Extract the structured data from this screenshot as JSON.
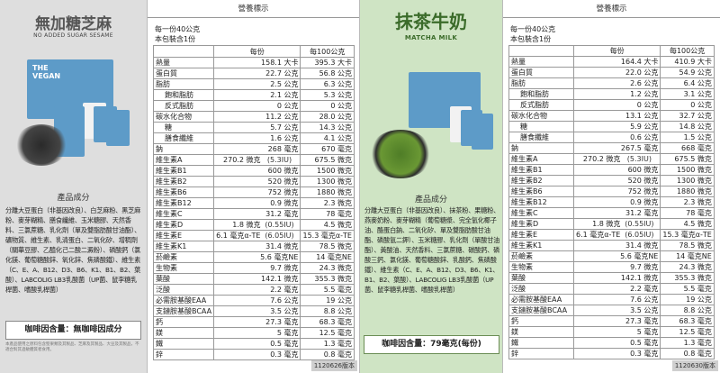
{
  "left_product": {
    "name": "無加糖芝麻",
    "subtitle": "NO ADDED SUGAR SESAME",
    "box_label": "THE\nVEGAN",
    "section_label": "產品成分",
    "ingredients": "分離大豆蛋白（非基因改良）、白芝麻粉、黑芝麻粉、麥芽糊精、膳食纖維、玉米糖膠、天然香料、三氯蔗糖、乳化劑（單及雙脂肪酸甘油酯）、礦物質、維生素、乳清蛋白、二氧化矽、增稠劑（關華豆膠、乙醯化己二酸二澱粉）、磷酸鈣（氯化鎂、葡萄糖酸鋅、氧化鋅、焦磷酸鐵）、維生素（C、E、A、B12、D3、B6、K1、B1、B2、葉酸）、LABCOLIG LB3乳酸菌（UP菌、鼠李糖乳桿菌、嗜酸乳桿菌）",
    "caffeine": "咖啡因含量：無咖啡因成分",
    "fineprint": "本產品使用之原料包含堅果類及其製品、芝麻及其製品、大豆及其製品，不適合對其過敏體質者食用。",
    "code": "1120626版本"
  },
  "left_nutrition": {
    "header": "營養標示",
    "serving": "每一份40公克",
    "servings_per_pack": "本包裝含1份",
    "col_per_serving": "每份",
    "col_per_100g": "每100公克",
    "rows": [
      {
        "name": "熱量",
        "a": "158.1 大卡",
        "m": "",
        "b": "395.3 大卡",
        "i": 0
      },
      {
        "name": "蛋白質",
        "a": "22.7 公克",
        "m": "",
        "b": "56.8 公克",
        "i": 0
      },
      {
        "name": "脂肪",
        "a": "2.5 公克",
        "m": "",
        "b": "6.3 公克",
        "i": 0
      },
      {
        "name": "飽和脂肪",
        "a": "2.1 公克",
        "m": "",
        "b": "5.3 公克",
        "i": 1
      },
      {
        "name": "反式脂肪",
        "a": "0 公克",
        "m": "",
        "b": "0 公克",
        "i": 1
      },
      {
        "name": "碳水化合物",
        "a": "11.2 公克",
        "m": "",
        "b": "28.0 公克",
        "i": 0
      },
      {
        "name": "糖",
        "a": "5.7 公克",
        "m": "",
        "b": "14.3 公克",
        "i": 1
      },
      {
        "name": "膳食纖維",
        "a": "1.6 公克",
        "m": "",
        "b": "4.1 公克",
        "i": 1
      },
      {
        "name": "鈉",
        "a": "268 毫克",
        "m": "",
        "b": "670 毫克",
        "i": 0
      },
      {
        "name": "維生素A",
        "a": "270.2 微克",
        "m": "(5.3IU)",
        "b": "675.5 微克",
        "i": 0
      },
      {
        "name": "維生素B1",
        "a": "600 微克",
        "m": "",
        "b": "1500 微克",
        "i": 0
      },
      {
        "name": "維生素B2",
        "a": "520 微克",
        "m": "",
        "b": "1300 微克",
        "i": 0
      },
      {
        "name": "維生素B6",
        "a": "752 微克",
        "m": "",
        "b": "1880 微克",
        "i": 0
      },
      {
        "name": "維生素B12",
        "a": "0.9 微克",
        "m": "",
        "b": "2.3 微克",
        "i": 0
      },
      {
        "name": "維生素C",
        "a": "31.2 毫克",
        "m": "",
        "b": "78 毫克",
        "i": 0
      },
      {
        "name": "維生素D",
        "a": "1.8 微克",
        "m": "(0.55IU)",
        "b": "4.5 微克",
        "i": 0
      },
      {
        "name": "維生素E",
        "a": "6.1 毫克α-TE",
        "m": "(6.05IU)",
        "b": "15.3 毫克α-TE",
        "i": 0
      },
      {
        "name": "維生素K1",
        "a": "31.4 微克",
        "m": "",
        "b": "78.5 微克",
        "i": 0
      },
      {
        "name": "菸鹼素",
        "a": "5.6 毫克NE",
        "m": "",
        "b": "14 毫克NE",
        "i": 0
      },
      {
        "name": "生物素",
        "a": "9.7 微克",
        "m": "",
        "b": "24.3 微克",
        "i": 0
      },
      {
        "name": "葉酸",
        "a": "142.1 微克",
        "m": "",
        "b": "355.3 微克",
        "i": 0
      },
      {
        "name": "泛酸",
        "a": "2.2 毫克",
        "m": "",
        "b": "5.5 毫克",
        "i": 0
      },
      {
        "name": "必需胺基酸EAA",
        "a": "7.6 公克",
        "m": "",
        "b": "19 公克",
        "i": 0
      },
      {
        "name": "支鏈胺基酸BCAA",
        "a": "3.5 公克",
        "m": "",
        "b": "8.8 公克",
        "i": 0
      },
      {
        "name": "鈣",
        "a": "27.3 毫克",
        "m": "",
        "b": "68.3 毫克",
        "i": 0
      },
      {
        "name": "鎂",
        "a": "5 毫克",
        "m": "",
        "b": "12.5 毫克",
        "i": 0
      },
      {
        "name": "鐵",
        "a": "0.5 毫克",
        "m": "",
        "b": "1.3 毫克",
        "i": 0
      },
      {
        "name": "鋅",
        "a": "0.3 毫克",
        "m": "",
        "b": "0.8 毫克",
        "i": 0
      }
    ]
  },
  "right_product": {
    "name": "抹茶牛奶",
    "subtitle": "MATCHA MILK",
    "section_label": "產品成分",
    "ingredients": "分離大豆蛋白（非基因改良）、抹茶粉、果糖粉、燕麥奶粉、麥芽糊精（葡萄糖漿、完全氫化椰子油、酪蛋白鈉、二氧化矽、單及雙脂肪酸甘油酯、磷酸氫二鉀）、玉米糖膠、乳化劑（單酸甘油酯）、黃酸油、天然香料、三氯蔗糖、碳酸鈣、磷酸三鈣、氯化鎂、葡萄糖酸鋅、乳酸鈣、焦磷酸鐵）、維生素（C、E、A、B12、D3、B6、K1、B1、B2、葉酸）、LABCOLIG LB3乳酸菌（UP菌、鼠李糖乳桿菌、嗜酸乳桿菌）",
    "caffeine": "咖啡因含量：79毫克(每份)",
    "code": "1120630版本"
  },
  "right_nutrition": {
    "header": "營養標示",
    "serving": "每一份40公克",
    "servings_per_pack": "本包裝含1份",
    "col_per_serving": "每份",
    "col_per_100g": "每100公克",
    "rows": [
      {
        "name": "熱量",
        "a": "164.4 大卡",
        "m": "",
        "b": "410.9 大卡",
        "i": 0
      },
      {
        "name": "蛋白質",
        "a": "22.0 公克",
        "m": "",
        "b": "54.9 公克",
        "i": 0
      },
      {
        "name": "脂肪",
        "a": "2.6 公克",
        "m": "",
        "b": "6.4 公克",
        "i": 0
      },
      {
        "name": "飽和脂肪",
        "a": "1.2 公克",
        "m": "",
        "b": "3.1 公克",
        "i": 1
      },
      {
        "name": "反式脂肪",
        "a": "0 公克",
        "m": "",
        "b": "0 公克",
        "i": 1
      },
      {
        "name": "碳水化合物",
        "a": "13.1 公克",
        "m": "",
        "b": "32.7 公克",
        "i": 0
      },
      {
        "name": "糖",
        "a": "5.9 公克",
        "m": "",
        "b": "14.8 公克",
        "i": 1
      },
      {
        "name": "膳食纖維",
        "a": "0.6 公克",
        "m": "",
        "b": "1.5 公克",
        "i": 1
      },
      {
        "name": "鈉",
        "a": "267.5 毫克",
        "m": "",
        "b": "668 毫克",
        "i": 0
      },
      {
        "name": "維生素A",
        "a": "270.2 微克",
        "m": "(5.3IU)",
        "b": "675.5 微克",
        "i": 0
      },
      {
        "name": "維生素B1",
        "a": "600 微克",
        "m": "",
        "b": "1500 微克",
        "i": 0
      },
      {
        "name": "維生素B2",
        "a": "520 微克",
        "m": "",
        "b": "1300 微克",
        "i": 0
      },
      {
        "name": "維生素B6",
        "a": "752 微克",
        "m": "",
        "b": "1880 微克",
        "i": 0
      },
      {
        "name": "維生素B12",
        "a": "0.9 微克",
        "m": "",
        "b": "2.3 微克",
        "i": 0
      },
      {
        "name": "維生素C",
        "a": "31.2 毫克",
        "m": "",
        "b": "78 毫克",
        "i": 0
      },
      {
        "name": "維生素D",
        "a": "1.8 微克",
        "m": "(0.55IU)",
        "b": "4.5 微克",
        "i": 0
      },
      {
        "name": "維生素E",
        "a": "6.1 毫克α-TE",
        "m": "(6.05IU)",
        "b": "15.3 毫克α-TE",
        "i": 0
      },
      {
        "name": "維生素K1",
        "a": "31.4 微克",
        "m": "",
        "b": "78.5 微克",
        "i": 0
      },
      {
        "name": "菸鹼素",
        "a": "5.6 毫克NE",
        "m": "",
        "b": "14 毫克NE",
        "i": 0
      },
      {
        "name": "生物素",
        "a": "9.7 微克",
        "m": "",
        "b": "24.3 微克",
        "i": 0
      },
      {
        "name": "葉酸",
        "a": "142.1 微克",
        "m": "",
        "b": "355.3 微克",
        "i": 0
      },
      {
        "name": "泛酸",
        "a": "2.2 毫克",
        "m": "",
        "b": "5.5 毫克",
        "i": 0
      },
      {
        "name": "必需胺基酸EAA",
        "a": "7.6 公克",
        "m": "",
        "b": "19 公克",
        "i": 0
      },
      {
        "name": "支鏈胺基酸BCAA",
        "a": "3.5 公克",
        "m": "",
        "b": "8.8 公克",
        "i": 0
      },
      {
        "name": "鈣",
        "a": "27.3 毫克",
        "m": "",
        "b": "68.3 毫克",
        "i": 0
      },
      {
        "name": "鎂",
        "a": "5 毫克",
        "m": "",
        "b": "12.5 毫克",
        "i": 0
      },
      {
        "name": "鐵",
        "a": "0.5 毫克",
        "m": "",
        "b": "1.3 毫克",
        "i": 0
      },
      {
        "name": "鋅",
        "a": "0.3 毫克",
        "m": "",
        "b": "0.8 毫克",
        "i": 0
      }
    ]
  }
}
